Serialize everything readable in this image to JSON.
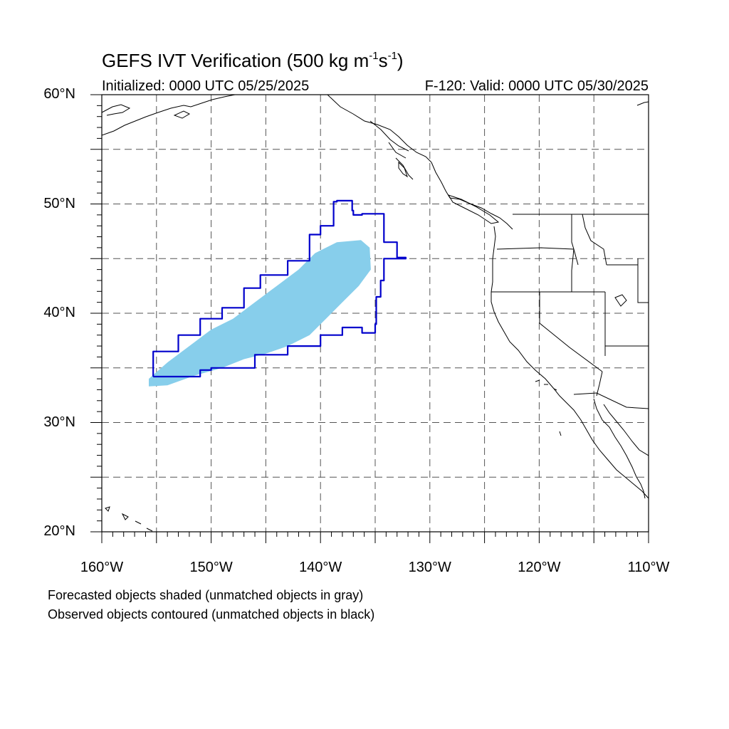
{
  "title": {
    "main": "GEFS IVT Verification (500 kg m",
    "sup1": "-1",
    "mid": "s",
    "sup2": "-1",
    "close": ")"
  },
  "subtitle": {
    "initialized": "Initialized: 0000 UTC 05/25/2025",
    "valid": "F-120: Valid: 0000 UTC 05/30/2025"
  },
  "map": {
    "lon_range": [
      -160,
      -110
    ],
    "lat_range": [
      20,
      60
    ],
    "gridlines": "dashed, every 5 degrees",
    "lat_labels": [
      {
        "lat": 60,
        "label": "60°N"
      },
      {
        "lat": 50,
        "label": "50°N"
      },
      {
        "lat": 40,
        "label": "40°N"
      },
      {
        "lat": 30,
        "label": "30°N"
      },
      {
        "lat": 20,
        "label": "20°N"
      }
    ],
    "lon_labels": [
      {
        "lon": -160,
        "label": "160°W"
      },
      {
        "lon": -150,
        "label": "150°W"
      },
      {
        "lon": -140,
        "label": "140°W"
      },
      {
        "lon": -130,
        "label": "130°W"
      },
      {
        "lon": -120,
        "label": "120°W"
      },
      {
        "lon": -110,
        "label": "110°W"
      }
    ],
    "colors": {
      "forecast_fill": "#87ceeb",
      "observed_contour": "#0000cc",
      "coastline": "#000000",
      "grid": "#555555"
    }
  },
  "forecast_object": {
    "description_source": "shaded",
    "polygon_lonlat": [
      [
        -155.7,
        33.3
      ],
      [
        -154.0,
        33.4
      ],
      [
        -151.5,
        34.3
      ],
      [
        -149.0,
        35.0
      ],
      [
        -147.0,
        35.8
      ],
      [
        -145.0,
        36.3
      ],
      [
        -143.0,
        37.0
      ],
      [
        -141.0,
        38.0
      ],
      [
        -139.5,
        39.5
      ],
      [
        -138.0,
        41.0
      ],
      [
        -136.5,
        42.5
      ],
      [
        -135.4,
        44.0
      ],
      [
        -135.5,
        46.0
      ],
      [
        -136.3,
        46.7
      ],
      [
        -138.5,
        46.5
      ],
      [
        -140.5,
        45.5
      ],
      [
        -142.0,
        44.0
      ],
      [
        -144.0,
        42.5
      ],
      [
        -146.0,
        41.0
      ],
      [
        -148.0,
        39.5
      ],
      [
        -150.0,
        38.5
      ],
      [
        -152.0,
        37.0
      ],
      [
        -154.0,
        35.5
      ],
      [
        -155.7,
        34.0
      ]
    ]
  },
  "observed_object": {
    "description_source": "contoured",
    "polygon_lonlat": [
      [
        -155.3,
        34.2
      ],
      [
        -151.0,
        34.8
      ],
      [
        -150.0,
        35.0
      ],
      [
        -146.0,
        36.2
      ],
      [
        -143.0,
        37.0
      ],
      [
        -140.0,
        38.0
      ],
      [
        -138.0,
        38.7
      ],
      [
        -136.2,
        38.2
      ],
      [
        -135.0,
        39.0
      ],
      [
        -134.9,
        41.5
      ],
      [
        -134.5,
        43.0
      ],
      [
        -134.2,
        45.0
      ],
      [
        -132.2,
        45.1
      ],
      [
        -133.0,
        45.6
      ],
      [
        -133.0,
        46.5
      ],
      [
        -134.2,
        46.8
      ],
      [
        -134.2,
        49.1
      ],
      [
        -136.2,
        49.0
      ],
      [
        -137.0,
        49.4
      ],
      [
        -137.1,
        50.3
      ],
      [
        -138.5,
        50.2
      ],
      [
        -138.8,
        48.0
      ],
      [
        -140.0,
        47.2
      ],
      [
        -141.0,
        44.8
      ],
      [
        -143.0,
        43.5
      ],
      [
        -145.5,
        42.3
      ],
      [
        -147.0,
        40.5
      ],
      [
        -149.0,
        39.5
      ],
      [
        -151.0,
        38.0
      ],
      [
        -153.0,
        36.5
      ],
      [
        -155.3,
        35.0
      ]
    ]
  },
  "footnotes": [
    "Forecasted objects shaded (unmatched objects in gray)",
    "Observed objects contoured (unmatched objects in black)"
  ]
}
